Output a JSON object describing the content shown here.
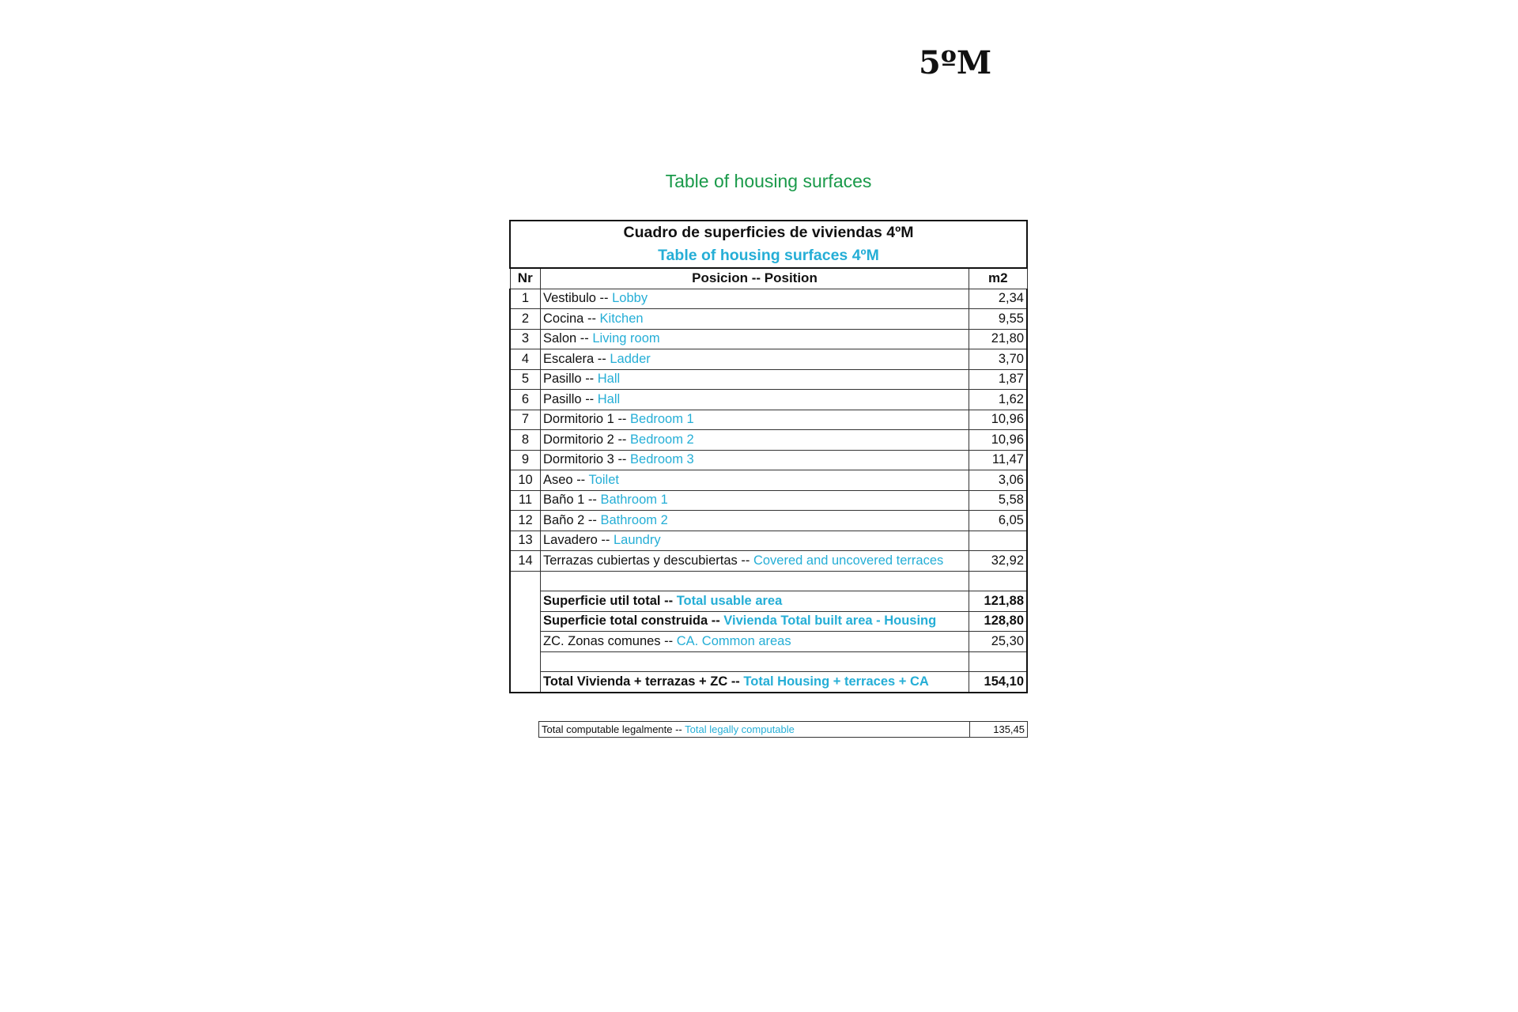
{
  "floor_label": "5ºM",
  "caption": "Table of housing surfaces",
  "table": {
    "title_es": "Cuadro de superficies de viviendas 4ºM",
    "title_en": "Table of housing surfaces 4ºM",
    "headers": {
      "nr": "Nr",
      "position": "Posicion -- Position",
      "m2": "m2"
    },
    "rows": [
      {
        "nr": "1",
        "es": "Vestibulo -- ",
        "en": "Lobby",
        "m2": "2,34"
      },
      {
        "nr": "2",
        "es": "Cocina --  ",
        "en": "Kitchen",
        "m2": "9,55"
      },
      {
        "nr": "3",
        "es": "Salon -- ",
        "en": "Living room",
        "m2": "21,80"
      },
      {
        "nr": "4",
        "es": "Escalera -- ",
        "en": "Ladder",
        "m2": "3,70"
      },
      {
        "nr": "5",
        "es": "Pasillo -- ",
        "en": "Hall",
        "m2": "1,87"
      },
      {
        "nr": "6",
        "es": "Pasillo -- ",
        "en": "Hall",
        "m2": "1,62"
      },
      {
        "nr": "7",
        "es": "Dormitorio 1 -- ",
        "en": "Bedroom 1",
        "m2": "10,96"
      },
      {
        "nr": "8",
        "es": "Dormitorio 2 -- ",
        "en": "Bedroom 2",
        "m2": "10,96"
      },
      {
        "nr": "9",
        "es": "Dormitorio 3 -- ",
        "en": "Bedroom 3",
        "m2": "11,47"
      },
      {
        "nr": "10",
        "es": "Aseo -- ",
        "en": "Toilet",
        "m2": "3,06"
      },
      {
        "nr": "11",
        "es": "Baño 1 -- ",
        "en": "Bathroom 1",
        "m2": "5,58"
      },
      {
        "nr": "12",
        "es": "Baño 2 -- ",
        "en": "Bathroom 2",
        "m2": "6,05"
      },
      {
        "nr": "13",
        "es": "Lavadero -- ",
        "en": "Laundry",
        "m2": ""
      },
      {
        "nr": "14",
        "es": "Terrazas cubiertas y descubiertas -- ",
        "en": "Covered and uncovered terraces",
        "m2": "32,92"
      }
    ],
    "totals": {
      "usable": {
        "es": "Superficie util total -- ",
        "en": "Total usable area",
        "m2": "121,88"
      },
      "built": {
        "es": "Superficie total construida -- ",
        "en": "Vivienda Total built area - Housing",
        "m2": "128,80"
      },
      "common": {
        "es": "ZC. Zonas comunes  -- ",
        "en": "CA. Common areas",
        "m2": "25,30"
      },
      "grand": {
        "es": "Total Vivienda + terrazas + ZC  -- ",
        "en": "Total Housing + terraces + CA",
        "m2": "154,10"
      }
    },
    "computable": {
      "es": "Total computable legalmente -- ",
      "en": "Total legally computable",
      "m2": "135,45"
    }
  },
  "colors": {
    "caption": "#1a9a4a",
    "english_text": "#25aed6"
  }
}
